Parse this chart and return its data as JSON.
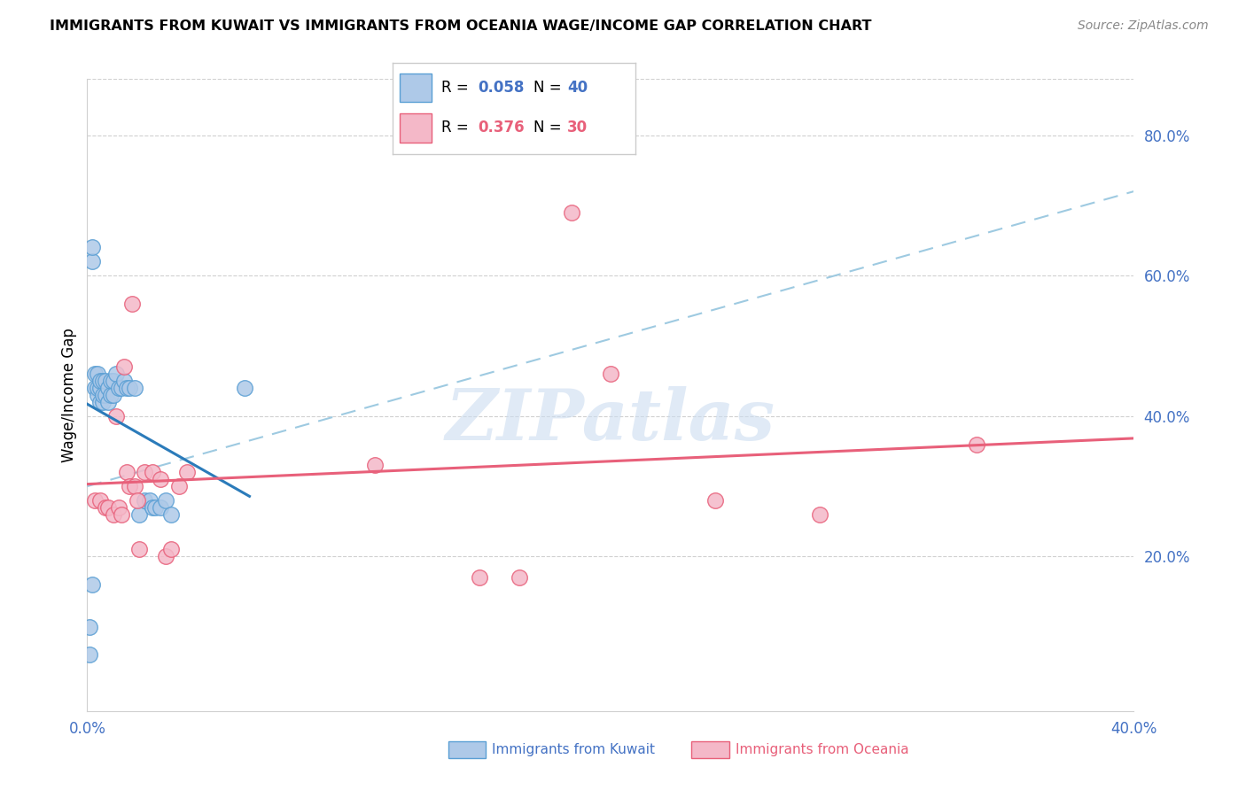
{
  "title": "IMMIGRANTS FROM KUWAIT VS IMMIGRANTS FROM OCEANIA WAGE/INCOME GAP CORRELATION CHART",
  "source": "Source: ZipAtlas.com",
  "ylabel": "Wage/Income Gap",
  "xlim": [
    0.0,
    0.4
  ],
  "ylim": [
    -0.02,
    0.88
  ],
  "ytick_labels_right": [
    "20.0%",
    "40.0%",
    "60.0%",
    "80.0%"
  ],
  "ytick_positions_right": [
    0.2,
    0.4,
    0.6,
    0.8
  ],
  "kuwait_color": "#aec9e8",
  "oceania_color": "#f4b8c8",
  "kuwait_edge_color": "#5a9fd4",
  "oceania_edge_color": "#e8607a",
  "kuwait_line_color": "#2b7bba",
  "oceania_line_color": "#e8607a",
  "dashed_line_color": "#9ecae1",
  "watermark": "ZIPatlas",
  "kuwait_x": [
    0.002,
    0.002,
    0.003,
    0.003,
    0.004,
    0.004,
    0.004,
    0.005,
    0.005,
    0.005,
    0.006,
    0.006,
    0.006,
    0.007,
    0.007,
    0.008,
    0.008,
    0.009,
    0.009,
    0.01,
    0.01,
    0.011,
    0.012,
    0.013,
    0.014,
    0.015,
    0.016,
    0.018,
    0.02,
    0.022,
    0.024,
    0.025,
    0.026,
    0.028,
    0.03,
    0.032,
    0.001,
    0.001,
    0.002,
    0.06
  ],
  "kuwait_y": [
    0.62,
    0.64,
    0.44,
    0.46,
    0.43,
    0.44,
    0.46,
    0.42,
    0.44,
    0.45,
    0.42,
    0.43,
    0.45,
    0.43,
    0.45,
    0.42,
    0.44,
    0.43,
    0.45,
    0.43,
    0.45,
    0.46,
    0.44,
    0.44,
    0.45,
    0.44,
    0.44,
    0.44,
    0.26,
    0.28,
    0.28,
    0.27,
    0.27,
    0.27,
    0.28,
    0.26,
    0.06,
    0.1,
    0.16,
    0.44
  ],
  "oceania_x": [
    0.003,
    0.005,
    0.007,
    0.008,
    0.01,
    0.011,
    0.012,
    0.013,
    0.014,
    0.015,
    0.016,
    0.017,
    0.018,
    0.019,
    0.02,
    0.022,
    0.025,
    0.028,
    0.03,
    0.032,
    0.035,
    0.038,
    0.11,
    0.15,
    0.165,
    0.185,
    0.2,
    0.24,
    0.28,
    0.34
  ],
  "oceania_y": [
    0.28,
    0.28,
    0.27,
    0.27,
    0.26,
    0.4,
    0.27,
    0.26,
    0.47,
    0.32,
    0.3,
    0.56,
    0.3,
    0.28,
    0.21,
    0.32,
    0.32,
    0.31,
    0.2,
    0.21,
    0.3,
    0.32,
    0.33,
    0.17,
    0.17,
    0.69,
    0.46,
    0.28,
    0.26,
    0.36
  ],
  "legend_r1_val": "0.058",
  "legend_n1_val": "40",
  "legend_r2_val": "0.376",
  "legend_n2_val": "30",
  "legend_color1": "#4472c4",
  "legend_color2": "#e8607a"
}
